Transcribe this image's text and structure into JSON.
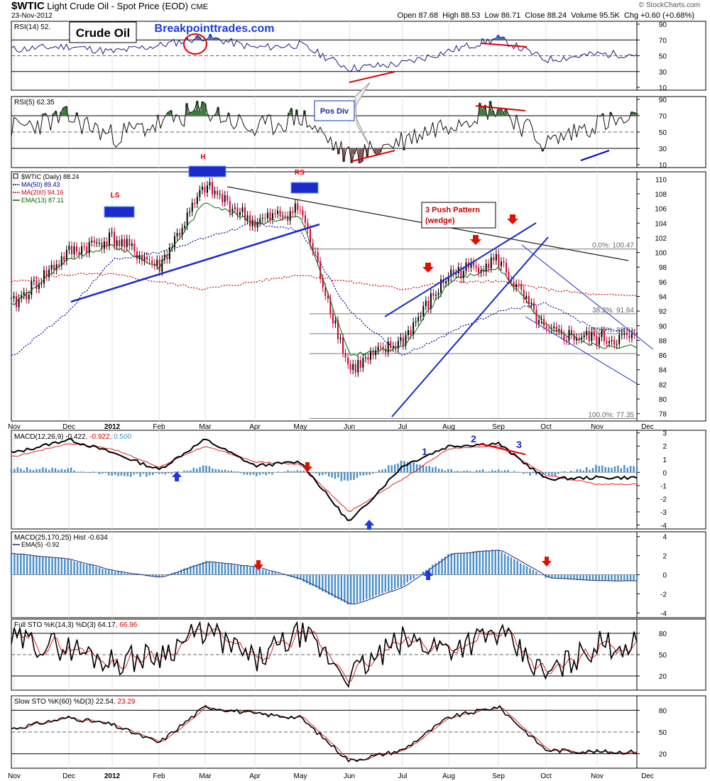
{
  "header": {
    "symbol": "$WTIC",
    "description": "Light Crude Oil - Spot Price (EOD)",
    "exchange": "CME",
    "date": "23-Nov-2012",
    "copyright": "© StockCharts.com",
    "ohlc": {
      "open_label": "Open",
      "open": "87.68",
      "high_label": "High",
      "high": "88.53",
      "low_label": "Low",
      "low": "86.71",
      "close_label": "Close",
      "close": "88.24",
      "volume_label": "Volume",
      "volume": "95.5K",
      "chg_label": "Chg",
      "chg": "+0.60 (+0.68%)"
    }
  },
  "overlays": {
    "crude_label": "Crude Oil",
    "site": "Breakpointtrades.com",
    "pos_div": "Pos Div",
    "push_pattern": "3 Push Pattern",
    "wedge": "(wedge)",
    "ls": "LS",
    "h": "H",
    "rs": "RS",
    "macd_counts": [
      "1",
      "2",
      "3"
    ],
    "fib": [
      "0.0%: 100.47",
      "38.2%: 91.64",
      "50.0%: 88.91",
      "100.0%: 77.35"
    ]
  },
  "colors": {
    "price_up": "#000000",
    "price_down": "#cc0033",
    "ma50": "#000099",
    "ma200": "#cc0000",
    "ema13": "#006600",
    "annotation_blue": "#0000cc",
    "annotation_red": "#dd0000",
    "hist": "#4a8fc7",
    "rsi_line": "#1a1a80"
  },
  "x_axis": [
    "Nov",
    "Dec",
    "2012",
    "Feb",
    "Mar",
    "Apr",
    "May",
    "Jun",
    "Jul",
    "Aug",
    "Sep",
    "Oct",
    "Nov",
    "Dec"
  ],
  "chart_data": [
    {
      "type": "line",
      "panel": "rsi14",
      "label": "RSI(14) 52.",
      "yticks": [
        10,
        30,
        50,
        70,
        90
      ],
      "ylim": [
        10,
        90
      ],
      "reference_lines": [
        30,
        50,
        70
      ],
      "series": [
        {
          "name": "RSI(14)",
          "x": [
            "Nov",
            "Dec",
            "2012",
            "Feb",
            "Mar",
            "Apr",
            "May",
            "Jun",
            "Jul",
            "Aug",
            "Sep",
            "Oct",
            "Nov"
          ],
          "values": [
            58,
            62,
            55,
            63,
            74,
            60,
            64,
            34,
            40,
            56,
            72,
            45,
            52
          ]
        }
      ]
    },
    {
      "type": "line",
      "panel": "rsi5",
      "label": "RSI(5) 62.35",
      "yticks": [
        10,
        30,
        50,
        70,
        90
      ],
      "ylim": [
        10,
        90
      ],
      "reference_lines": [
        30,
        50,
        70
      ],
      "series": [
        {
          "name": "RSI(5)",
          "x": [
            "Nov",
            "Dec",
            "2012",
            "Feb",
            "Mar",
            "Apr",
            "May",
            "Jun",
            "Jul",
            "Aug",
            "Sep",
            "Oct",
            "Nov"
          ],
          "values": [
            55,
            68,
            45,
            60,
            78,
            52,
            70,
            18,
            40,
            62,
            82,
            35,
            62
          ]
        }
      ]
    },
    {
      "type": "line",
      "panel": "price",
      "legend": [
        "$WTIC (Daily) 88.24",
        "MA(50) 89.43",
        "MA(200) 94.16",
        "EMA(13) 87.11"
      ],
      "yticks": [
        78,
        80,
        82,
        84,
        86,
        88,
        90,
        92,
        94,
        96,
        98,
        100,
        102,
        104,
        106,
        108,
        110
      ],
      "ylim": [
        77,
        111
      ],
      "series": [
        {
          "name": "$WTIC (Daily) 88.24",
          "x": [
            "Nov",
            "Dec",
            "2012",
            "Feb",
            "Mar",
            "Apr",
            "May",
            "Jun",
            "Jul",
            "Aug",
            "Sep",
            "Oct",
            "Nov"
          ],
          "values": [
            93,
            100,
            102,
            98,
            109,
            104,
            106,
            84,
            88,
            97,
            99,
            89,
            88.24
          ]
        },
        {
          "name": "MA(50) 89.43",
          "x": [
            "Nov",
            "Dec",
            "2012",
            "Feb",
            "Mar",
            "Apr",
            "May",
            "Jun",
            "Jul",
            "Aug",
            "Sep",
            "Oct",
            "Nov"
          ],
          "values": [
            86,
            92,
            99,
            100,
            102,
            104,
            103,
            92,
            86,
            89,
            92,
            93,
            89.43
          ]
        },
        {
          "name": "MA(200) 94.16",
          "x": [
            "Nov",
            "Dec",
            "2012",
            "Feb",
            "Mar",
            "Apr",
            "May",
            "Jun",
            "Jul",
            "Aug",
            "Sep",
            "Oct",
            "Nov"
          ],
          "values": [
            96,
            97,
            97,
            96,
            95,
            96,
            97,
            96,
            95,
            96,
            96,
            95,
            94.16
          ]
        },
        {
          "name": "EMA(13) 87.11",
          "x": [
            "Nov",
            "Dec",
            "2012",
            "Feb",
            "Mar",
            "Apr",
            "May",
            "Jun",
            "Jul",
            "Aug",
            "Sep",
            "Oct",
            "Nov"
          ],
          "values": [
            93,
            99,
            101,
            98,
            107,
            104,
            105,
            86,
            87,
            96,
            98,
            90,
            87.11
          ]
        }
      ]
    },
    {
      "type": "line",
      "panel": "macd_12_26_9",
      "label_parts": [
        "MACD(12,26,9)",
        "-0.422",
        "-0.922",
        "0.500"
      ],
      "yticks": [
        -4,
        -3,
        -2,
        -1,
        0,
        1,
        2,
        3
      ],
      "ylim": [
        -4.3,
        3.2
      ],
      "series": [
        {
          "name": "MACD",
          "x": [
            "Nov",
            "Dec",
            "2012",
            "Feb",
            "Mar",
            "Apr",
            "May",
            "Jun",
            "Jul",
            "Aug",
            "Sep",
            "Oct",
            "Nov"
          ],
          "values": [
            1.5,
            2.5,
            1.5,
            0.2,
            2.5,
            0.5,
            0.8,
            -3.8,
            0.5,
            2.0,
            2.2,
            -0.5,
            -0.4
          ]
        },
        {
          "name": "Signal",
          "x": [
            "Nov",
            "Dec",
            "2012",
            "Feb",
            "Mar",
            "Apr",
            "May",
            "Jun",
            "Jul",
            "Aug",
            "Sep",
            "Oct",
            "Nov"
          ],
          "values": [
            1.2,
            2.2,
            1.8,
            0.4,
            2.0,
            0.8,
            0.6,
            -3.0,
            -0.5,
            1.8,
            2.0,
            -0.2,
            -0.9
          ]
        }
      ]
    },
    {
      "type": "bar",
      "panel": "macd_25_170_25",
      "label": "MACD(25,170,25) Hist -0.634",
      "legend": [
        "EMA(5) -0.92"
      ],
      "yticks": [
        -4,
        -2,
        0,
        2,
        4
      ],
      "ylim": [
        -4.5,
        4.5
      ],
      "series": [
        {
          "name": "Hist",
          "x": [
            "Nov",
            "Dec",
            "2012",
            "Feb",
            "Mar",
            "Apr",
            "May",
            "Jun",
            "Jul",
            "Aug",
            "Sep",
            "Oct",
            "Nov"
          ],
          "values": [
            2.2,
            1.6,
            0.4,
            -0.3,
            1.4,
            0.8,
            -0.5,
            -3.2,
            -1.2,
            2.2,
            2.6,
            -0.3,
            -0.63
          ]
        }
      ]
    },
    {
      "type": "line",
      "panel": "full_sto",
      "label_parts": [
        "Full STO %K(14,3) %D(3)",
        "64.17",
        "66.96"
      ],
      "yticks": [
        20,
        50,
        80
      ],
      "ylim": [
        0,
        100
      ],
      "reference_lines": [
        20,
        50,
        80
      ],
      "series": [
        {
          "name": "%K",
          "x": [
            "Nov",
            "Dec",
            "2012",
            "Feb",
            "Mar",
            "Apr",
            "May",
            "Jun",
            "Jul",
            "Aug",
            "Sep",
            "Oct",
            "Nov"
          ],
          "values": [
            70,
            60,
            40,
            50,
            85,
            40,
            80,
            20,
            70,
            60,
            80,
            20,
            64.17
          ]
        },
        {
          "name": "%D",
          "x": [
            "Nov",
            "Dec",
            "2012",
            "Feb",
            "Mar",
            "Apr",
            "May",
            "Jun",
            "Jul",
            "Aug",
            "Sep",
            "Oct",
            "Nov"
          ],
          "values": [
            68,
            58,
            42,
            48,
            82,
            42,
            78,
            22,
            68,
            62,
            78,
            22,
            66.96
          ]
        }
      ]
    },
    {
      "type": "line",
      "panel": "slow_sto",
      "label_parts": [
        "Slow STO %K(60) %D(3)",
        "22.54",
        "23.29"
      ],
      "yticks": [
        20,
        50,
        80
      ],
      "ylim": [
        0,
        100
      ],
      "reference_lines": [
        20,
        50,
        80
      ],
      "series": [
        {
          "name": "%K",
          "x": [
            "Nov",
            "Dec",
            "2012",
            "Feb",
            "Mar",
            "Apr",
            "May",
            "Jun",
            "Jul",
            "Aug",
            "Sep",
            "Oct",
            "Nov"
          ],
          "values": [
            55,
            70,
            60,
            35,
            85,
            75,
            70,
            10,
            25,
            70,
            85,
            25,
            22.54
          ]
        },
        {
          "name": "%D",
          "x": [
            "Nov",
            "Dec",
            "2012",
            "Feb",
            "Mar",
            "Apr",
            "May",
            "Jun",
            "Jul",
            "Aug",
            "Sep",
            "Oct",
            "Nov"
          ],
          "values": [
            54,
            69,
            61,
            36,
            84,
            74,
            70,
            11,
            24,
            69,
            84,
            26,
            23.29
          ]
        }
      ]
    }
  ]
}
